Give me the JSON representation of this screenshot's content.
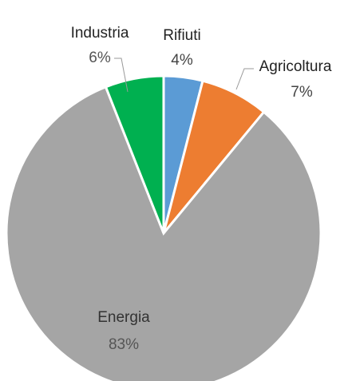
{
  "chart_data": {
    "type": "pie",
    "categories": [
      "Rifiuti",
      "Agricoltura",
      "Energia",
      "Industria"
    ],
    "values": [
      4,
      7,
      83,
      6
    ],
    "value_labels": [
      "4%",
      "7%",
      "83%",
      "6%"
    ],
    "colors": [
      "#5b9bd5",
      "#ed7d31",
      "#a5a5a5",
      "#00b050"
    ]
  }
}
